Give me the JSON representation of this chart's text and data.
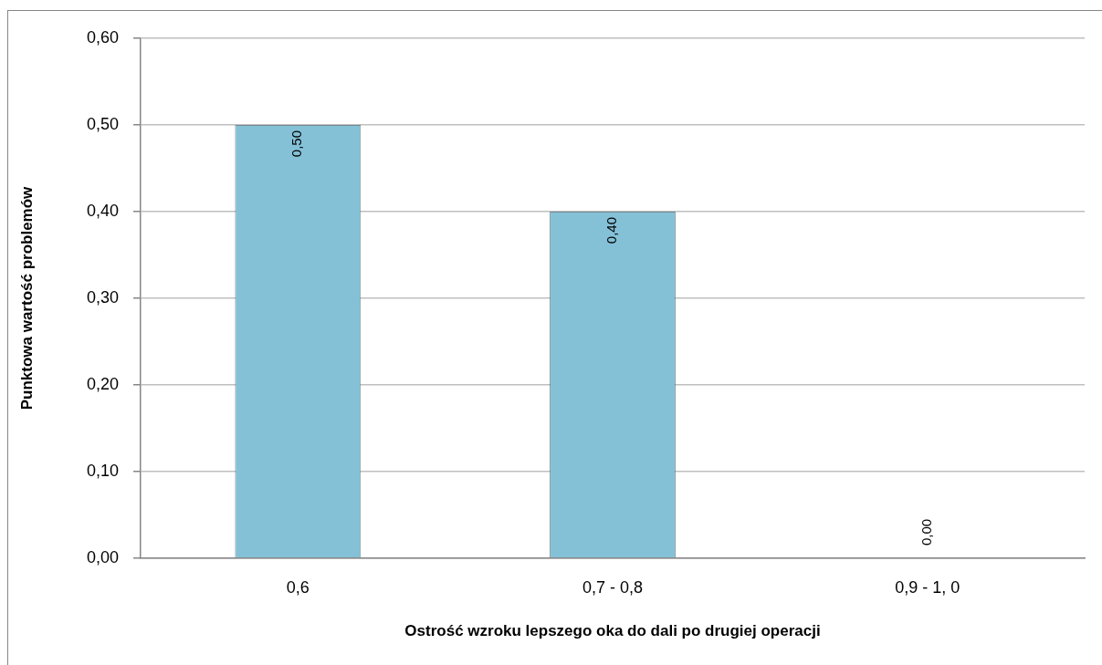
{
  "chart_data": {
    "type": "bar",
    "xlabel": "Ostrość wzroku lepszego oka do dali po drugiej operacji",
    "ylabel": "Punktowa wartość problemów",
    "categories": [
      "0,6",
      "0,7 - 0,8",
      "0,9 - 1, 0"
    ],
    "values": [
      0.5,
      0.4,
      0
    ],
    "color": "#84c1d7",
    "value_labels": [
      "0,50",
      "0,40",
      "0,00"
    ],
    "ylim": [
      0,
      0.6
    ],
    "yticks": [
      {
        "value": 0,
        "label": "0,00"
      },
      {
        "value": 0.1,
        "label": "0,10"
      },
      {
        "value": 0.2,
        "label": "0,20"
      },
      {
        "value": 0.3,
        "label": "0,30"
      },
      {
        "value": 0.4,
        "label": "0,40"
      },
      {
        "value": 0.5,
        "label": "0,50"
      },
      {
        "value": 0.6,
        "label": "0,60"
      }
    ],
    "grid": "y"
  }
}
